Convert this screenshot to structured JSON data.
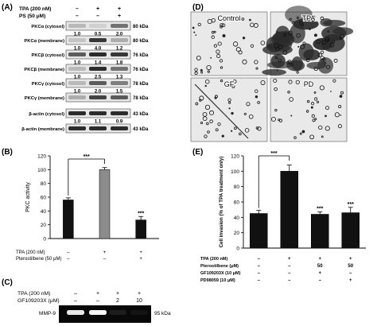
{
  "panels": {
    "A": {
      "letter": "(A)",
      "treatments": [
        {
          "name": "TPA (200 nM)",
          "marks": [
            "–",
            "+",
            "+"
          ]
        },
        {
          "name": "PS  (50 μM)",
          "marks": [
            "–",
            "–",
            "+"
          ]
        }
      ],
      "blots": [
        {
          "label": "PKCα (cytosol)",
          "mw": "80 kDa",
          "intensity": [
            0.3,
            0.2,
            0.6
          ],
          "quant": [
            "1.0",
            "0.5",
            "2.0"
          ]
        },
        {
          "label": "PKCα (membrane)",
          "mw": "80 kDa",
          "intensity": [
            0.25,
            0.85,
            0.35
          ],
          "quant": [
            "1.0",
            "4.0",
            "1.2"
          ]
        },
        {
          "label": "PKCβ (cytosol)",
          "mw": "76 kDa",
          "intensity": [
            0.7,
            0.9,
            0.85
          ],
          "quant": [
            "1.0",
            "1.4",
            "1.8"
          ]
        },
        {
          "label": "PKCβ (membrane)",
          "mw": "76 kDa",
          "intensity": [
            0.3,
            0.9,
            0.6
          ],
          "quant": [
            "1.0",
            "2.5",
            "1.3"
          ]
        },
        {
          "label": "PKCγ (cytosol)",
          "mw": "78 kDa",
          "intensity": [
            0.3,
            0.7,
            0.55
          ],
          "quant": [
            "1.0",
            "2.0",
            "1.5"
          ]
        },
        {
          "label": "PKCγ (membrane)",
          "mw": "78 kDa",
          "intensity": [
            0.35,
            0.8,
            0.7
          ],
          "quant": [
            "",
            "",
            ""
          ]
        },
        {
          "label": "β-actin (cytosol)",
          "mw": "43 kDa",
          "intensity": [
            0.9,
            0.9,
            0.9
          ],
          "quant": [
            "1.0",
            "1.1",
            "0.9"
          ]
        },
        {
          "label": "β-actin (membrane)",
          "mw": "43 kDa",
          "intensity": [
            0.9,
            0.9,
            0.9
          ],
          "quant": [
            "",
            "",
            ""
          ]
        }
      ]
    },
    "B": {
      "letter": "(B)",
      "significance": [
        "***",
        "***"
      ],
      "conditions": [
        {
          "name": "TPA (200 nM)",
          "marks": [
            "–",
            "+",
            "+"
          ]
        },
        {
          "name": "Pterostilbene (50 μM)",
          "marks": [
            "–",
            "–",
            "+"
          ]
        }
      ]
    },
    "C": {
      "letter": "(C)",
      "treatments": [
        {
          "name": "TPA (200 nM)",
          "marks": [
            "–",
            "+",
            "+",
            "+"
          ]
        },
        {
          "name": "GF109203X (μM)",
          "marks": [
            "–",
            "–",
            "2",
            "10"
          ]
        }
      ],
      "blot": {
        "label": "MMP-9",
        "mw": "95 kDa",
        "intensity": [
          0.95,
          1.0,
          0.12,
          0.08
        ]
      }
    },
    "D": {
      "letter": "(D)",
      "micrographs": [
        {
          "label": "Control",
          "density": 0.15
        },
        {
          "label": "TPA",
          "density": 0.9
        },
        {
          "label": "GF",
          "density": 0.2
        },
        {
          "label": "PD",
          "density": 0.18
        }
      ]
    },
    "E": {
      "letter": "(E)",
      "significance": [
        "***",
        "***",
        "***"
      ],
      "conditions": [
        {
          "name": "TPA (200 nM)",
          "marks": [
            "–",
            "+",
            "+",
            "+"
          ]
        },
        {
          "name": "Pterostilbene (μM)",
          "marks": [
            "–",
            "–",
            "50",
            "50"
          ]
        },
        {
          "name": "GF109203X (10 μM)",
          "marks": [
            "–",
            "–",
            "+",
            "–"
          ]
        },
        {
          "name": "PD98059 (10 μM)",
          "marks": [
            "–",
            "–",
            "–",
            "+"
          ]
        }
      ]
    }
  },
  "chart_data": [
    {
      "type": "bar",
      "panel": "B",
      "ylabel": "PKC activity",
      "ylim": [
        0,
        120
      ],
      "yticks": [
        0,
        20,
        40,
        60,
        80,
        100,
        120
      ],
      "categories": [
        "1",
        "2",
        "3"
      ],
      "values": [
        56,
        100,
        27
      ],
      "errors": [
        3,
        3,
        5
      ],
      "colors": [
        "#111111",
        "#8c8c8c",
        "#111111"
      ],
      "grid": false
    },
    {
      "type": "bar",
      "panel": "E",
      "ylabel": "Cell invasion (% of TPA treatment only)",
      "ylim": [
        0,
        120
      ],
      "yticks": [
        0,
        20,
        40,
        60,
        80,
        100,
        120
      ],
      "categories": [
        "1",
        "2",
        "3",
        "4"
      ],
      "values": [
        45,
        100,
        44,
        46
      ],
      "errors": [
        4,
        8,
        3,
        7
      ],
      "colors": [
        "#111111",
        "#111111",
        "#111111",
        "#111111"
      ],
      "grid": false
    }
  ]
}
